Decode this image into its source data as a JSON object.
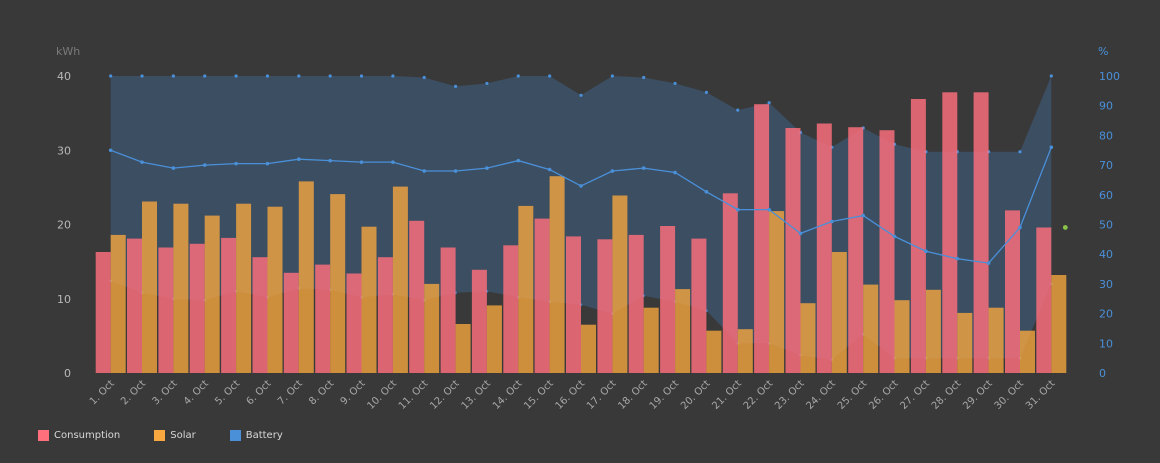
{
  "colors": {
    "background": "#393939",
    "consumption": "#ff6f7c",
    "solar": "#f9a83f",
    "battery": "#4a90d9",
    "battery_area": "#3d5066",
    "axis_left": "#b8b8b8",
    "axis_right": "#4a90d9",
    "highlight_point": "#8bc34a"
  },
  "legend": [
    {
      "label": "Consumption",
      "color": "#ff6f7c"
    },
    {
      "label": "Solar",
      "color": "#f9a83f"
    },
    {
      "label": "Battery",
      "color": "#4a90d9"
    }
  ],
  "chart_data": {
    "type": "bar",
    "title": "",
    "categories": [
      "1. Oct",
      "2. Oct",
      "3. Oct",
      "4. Oct",
      "5. Oct",
      "6. Oct",
      "7. Oct",
      "8. Oct",
      "9. Oct",
      "10. Oct",
      "11. Oct",
      "12. Oct",
      "13. Oct",
      "14. Oct",
      "15. Oct",
      "16. Oct",
      "17. Oct",
      "18. Oct",
      "19. Oct",
      "20. Oct",
      "21. Oct",
      "22. Oct",
      "23. Oct",
      "24. Oct",
      "25. Oct",
      "26. Oct",
      "27. Oct",
      "28. Oct",
      "29. Oct",
      "30. Oct",
      "31. Oct"
    ],
    "y_left": {
      "label": "kWh",
      "min": 0,
      "max": 40,
      "ticks": [
        0,
        10,
        20,
        30,
        40
      ]
    },
    "y_right": {
      "label": "%",
      "min": 0,
      "max": 100,
      "ticks": [
        0,
        10,
        20,
        30,
        40,
        50,
        60,
        70,
        80,
        90,
        100
      ]
    },
    "grid": false,
    "legend_position": "bottom-left",
    "series": [
      {
        "name": "Consumption",
        "type": "bar",
        "axis": "left",
        "values": [
          16.3,
          18.1,
          16.9,
          17.4,
          18.2,
          15.6,
          13.5,
          14.6,
          13.4,
          15.6,
          20.5,
          16.9,
          13.9,
          17.2,
          20.8,
          18.4,
          18.0,
          18.6,
          19.8,
          18.1,
          24.2,
          36.2,
          33.0,
          33.6,
          33.1,
          32.7,
          36.9,
          37.8,
          37.8,
          21.9,
          19.6
        ]
      },
      {
        "name": "Solar",
        "type": "bar",
        "axis": "left",
        "values": [
          18.6,
          23.1,
          22.8,
          21.2,
          22.8,
          22.4,
          25.8,
          24.1,
          19.7,
          25.1,
          12.0,
          6.6,
          9.1,
          22.5,
          26.5,
          6.5,
          23.9,
          8.8,
          11.3,
          5.7,
          5.9,
          21.8,
          9.4,
          16.3,
          11.9,
          9.8,
          11.2,
          8.1,
          8.8,
          5.7,
          13.2
        ]
      },
      {
        "name": "Battery",
        "type": "line",
        "axis": "right",
        "values": [
          75,
          71,
          69,
          70,
          70.5,
          70.5,
          72,
          71.5,
          71,
          71,
          68,
          68,
          69,
          71.5,
          68.5,
          63,
          68,
          69,
          67.5,
          61,
          55,
          55,
          47,
          51,
          53,
          46,
          41,
          38.5,
          37,
          49,
          76
        ]
      },
      {
        "name": "Battery max",
        "type": "area",
        "axis": "right",
        "values": [
          100,
          100,
          100,
          100,
          100,
          100,
          100,
          100,
          100,
          100,
          99.5,
          96.5,
          97.5,
          100,
          100,
          93.5,
          100,
          99.5,
          97.5,
          94.5,
          88.5,
          91,
          81,
          76,
          82.5,
          77,
          74.5,
          74.5,
          74.5,
          74.5,
          100
        ]
      },
      {
        "name": "Battery min",
        "type": "area",
        "axis": "right",
        "values": [
          31,
          27,
          25,
          24.5,
          27.5,
          25.5,
          28.5,
          28,
          25.5,
          26.5,
          24.5,
          27,
          27.5,
          25.5,
          24,
          23,
          20,
          26,
          24,
          21,
          10,
          10,
          6,
          4.5,
          13,
          5,
          5,
          5,
          5,
          5,
          30
        ]
      }
    ]
  }
}
